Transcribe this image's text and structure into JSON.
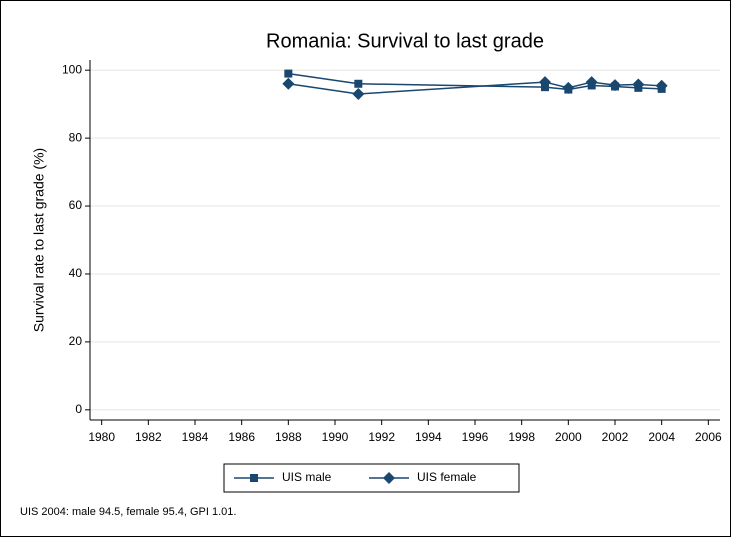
{
  "chart_data": {
    "type": "line",
    "title": "Romania: Survival to last grade",
    "y_label": "Survival rate to last grade (%)",
    "note": "UIS 2004: male 94.5, female 95.4, GPI 1.01.",
    "x": [
      1988,
      1991,
      1999,
      2000,
      2001,
      2002,
      2003,
      2004
    ],
    "series": [
      {
        "name": "UIS male",
        "color": "#1a476f",
        "marker": "square",
        "values": [
          99,
          96,
          95,
          94.3,
          95.5,
          95.2,
          94.8,
          94.5
        ]
      },
      {
        "name": "UIS female",
        "color": "#1a476f",
        "marker": "diamond",
        "values": [
          96,
          93,
          96.5,
          94.8,
          96.5,
          95.6,
          95.8,
          95.4
        ]
      }
    ],
    "xlim": [
      1979.5,
      2006.5
    ],
    "xticks": [
      1980,
      1982,
      1984,
      1986,
      1988,
      1990,
      1992,
      1994,
      1996,
      1998,
      2000,
      2002,
      2004,
      2006
    ],
    "ylim": [
      -3,
      103
    ],
    "yticks": [
      0,
      20,
      40,
      60,
      80,
      100
    ],
    "grid": true,
    "legend": "bottom"
  }
}
